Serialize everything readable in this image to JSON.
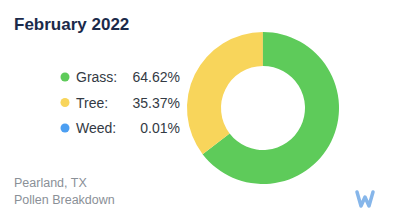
{
  "chart_data": {
    "type": "pie",
    "title": "February 2022",
    "categories": [
      "Grass:",
      "Tree:",
      "Weed:"
    ],
    "values": [
      64.62,
      35.37,
      0.01
    ],
    "value_labels": [
      "64.62%",
      "35.37%",
      "0.01%"
    ],
    "colors": [
      "#5ecb5a",
      "#f8d55b",
      "#4c9ff2"
    ],
    "legend": "left",
    "annotations": [
      "Pearland, TX",
      "Pollen Breakdown"
    ]
  }
}
